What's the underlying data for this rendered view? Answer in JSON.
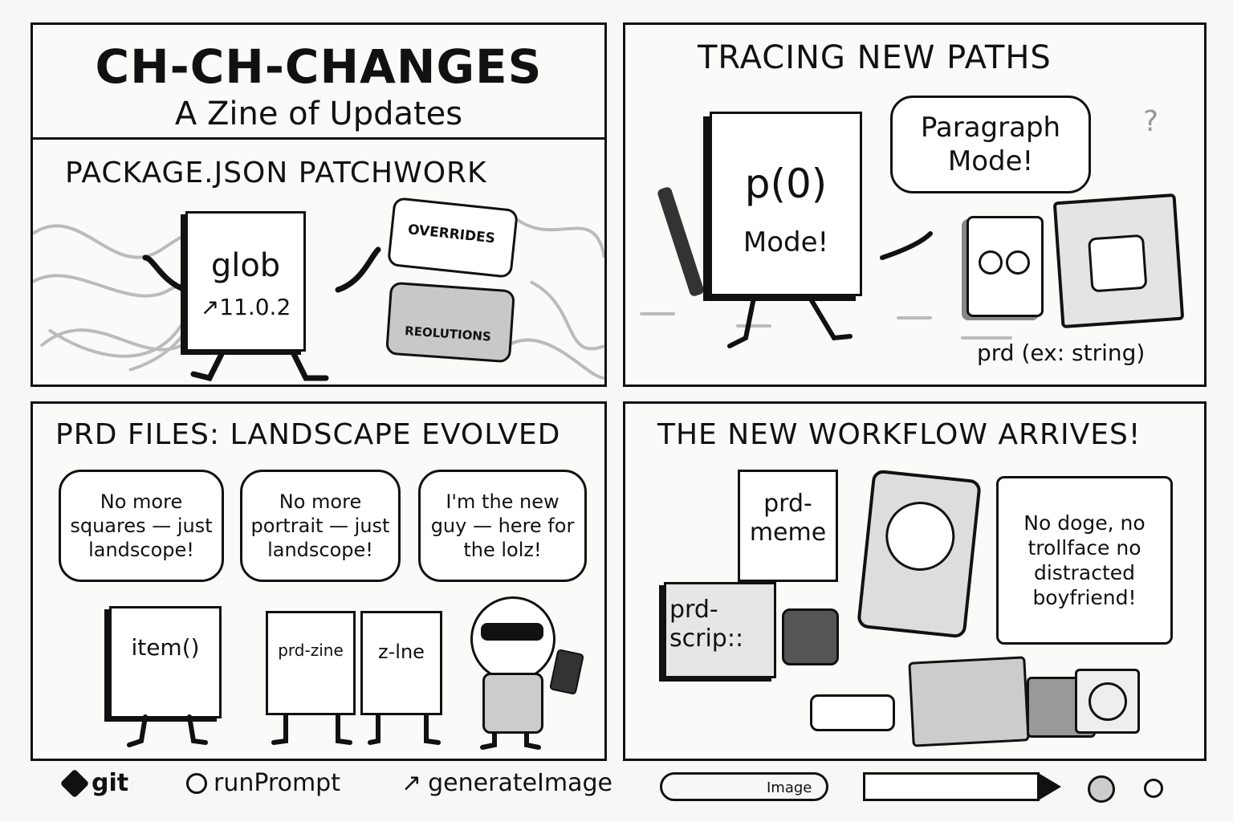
{
  "title_panel": {
    "title": "CH-CH-CHANGES",
    "subtitle": "A Zine of Updates"
  },
  "panel1": {
    "heading": "PACKAGE.JSON PATCHWORK",
    "doc_name": "glob",
    "doc_version": "↗11.0.2",
    "puzzle_top": "OVERRIDES",
    "puzzle_bottom": "REOLUTIONS"
  },
  "panel2": {
    "heading": "TRACING NEW PATHS",
    "doc_line1": "p(0)",
    "doc_line2": "Mode!",
    "bubble": "Paragraph Mode!",
    "question": "?",
    "caption": "prd (ex: string)"
  },
  "panel3": {
    "heading": "PRD FILES: LANDSCAPE EVOLVED",
    "bubble1": "No more squares — just landscope!",
    "bubble2": "No more portrait — just landscope!",
    "bubble3": "I'm the new guy — here for the lolz!",
    "doc1": "item()",
    "doc2": "prd-zine",
    "doc3": "z-lne"
  },
  "panel4": {
    "heading": "THE NEW WORKFLOW ARRIVES!",
    "note": "prd- meme",
    "box_label": "prd- scrip::",
    "scroll": "No doge, no trollface no distracted boyfriend!"
  },
  "footer": {
    "git": "git",
    "run_prompt": "runPrompt",
    "generate_image": "generateImage",
    "image_label": "Image"
  }
}
